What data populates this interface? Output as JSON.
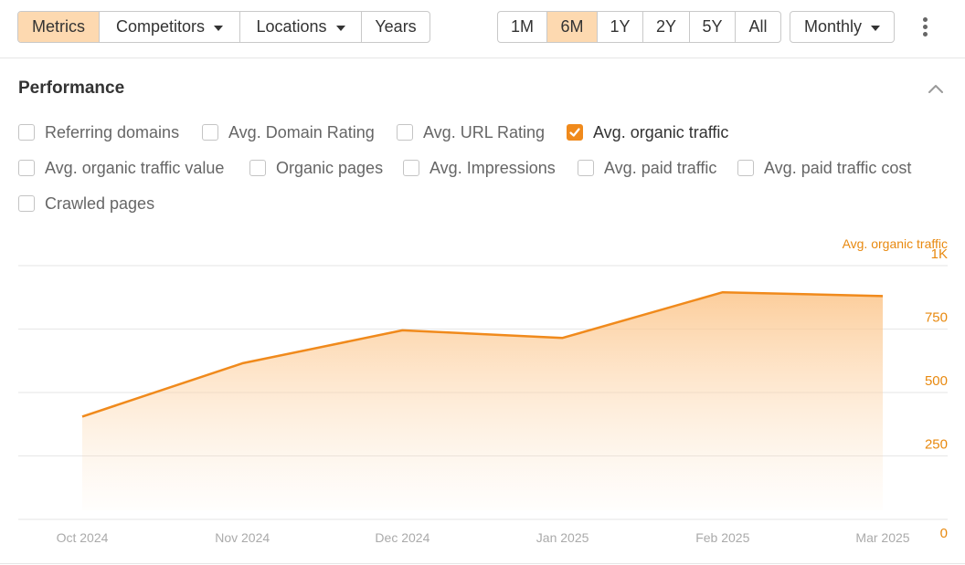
{
  "toolbar": {
    "view_tabs": [
      {
        "label": "Metrics",
        "active": true,
        "dropdown": false
      },
      {
        "label": "Competitors",
        "active": false,
        "dropdown": true
      },
      {
        "label": "Locations",
        "active": false,
        "dropdown": true
      },
      {
        "label": "Years",
        "active": false,
        "dropdown": false
      }
    ],
    "ranges": [
      {
        "label": "1M",
        "active": false
      },
      {
        "label": "6M",
        "active": true
      },
      {
        "label": "1Y",
        "active": false
      },
      {
        "label": "2Y",
        "active": false
      },
      {
        "label": "5Y",
        "active": false
      },
      {
        "label": "All",
        "active": false
      }
    ],
    "interval": "Monthly"
  },
  "performance": {
    "title": "Performance",
    "metrics": [
      {
        "label": "Referring domains",
        "checked": false
      },
      {
        "label": "Avg. Domain Rating",
        "checked": false
      },
      {
        "label": "Avg. URL Rating",
        "checked": false
      },
      {
        "label": "Avg. organic traffic",
        "checked": true
      },
      {
        "label": "Avg. organic traffic value",
        "checked": false
      },
      {
        "label": "Organic pages",
        "checked": false
      },
      {
        "label": "Avg. Impressions",
        "checked": false
      },
      {
        "label": "Avg. paid traffic",
        "checked": false
      },
      {
        "label": "Avg. paid traffic cost",
        "checked": false
      },
      {
        "label": "Crawled pages",
        "checked": false
      }
    ]
  },
  "colors": {
    "accent": "#f08a1c",
    "active_button": "#fdd9b0",
    "axis_text": "#e8890f",
    "x_tick_text": "#aaaaaa",
    "grid": "#e6e6e6"
  },
  "chart_data": {
    "type": "area",
    "series": [
      {
        "name": "Avg. organic traffic",
        "values": [
          405,
          615,
          745,
          715,
          895,
          880
        ]
      }
    ],
    "categories": [
      "Oct 2024",
      "Nov 2024",
      "Dec 2024",
      "Jan 2025",
      "Feb 2025",
      "Mar 2025"
    ],
    "y_ticks": [
      "0",
      "250",
      "500",
      "750",
      "1K"
    ],
    "y_tick_values": [
      0,
      250,
      500,
      750,
      1000
    ],
    "ylim": [
      0,
      1000
    ],
    "axis_label_right": "Avg. organic traffic",
    "grid": true
  }
}
